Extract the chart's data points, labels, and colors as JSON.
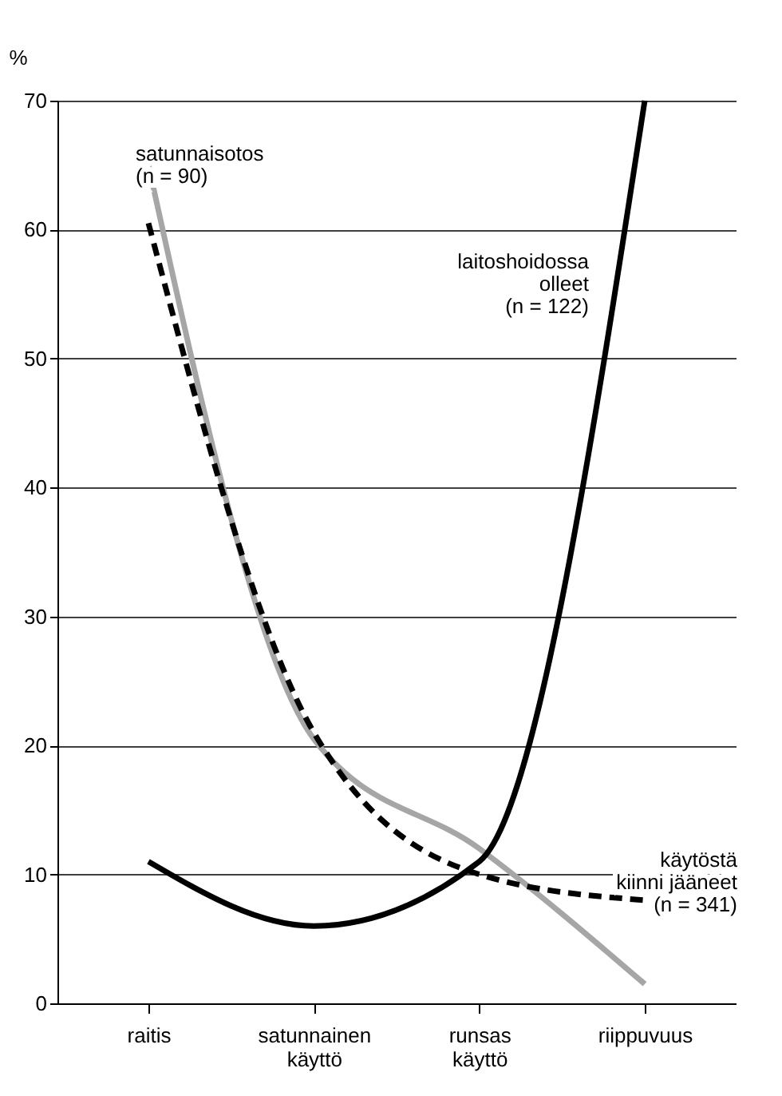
{
  "chart_data": {
    "type": "line",
    "ylabel": "%",
    "categories": [
      "raitis",
      "satunnainen käyttö",
      "runsas käyttö",
      "riippuvuus"
    ],
    "ylim": [
      0,
      70
    ],
    "yticks": [
      0,
      10,
      20,
      30,
      40,
      50,
      60,
      70
    ],
    "grid": "y",
    "series": [
      {
        "name": "satunnaisotos\n(n = 90)",
        "color": "#a6a6a6",
        "values": [
          65,
          20.5,
          12,
          1.5
        ],
        "line_style": "solid"
      },
      {
        "name": "käytöstä\nkiinni jääneet\n(n = 341)",
        "color": "#000000",
        "values": [
          60.5,
          21,
          10,
          8
        ],
        "line_style": "dashed"
      },
      {
        "name": "laitoshoidossa\nolleet\n(n = 122)",
        "color": "#000000",
        "values": [
          11,
          6,
          11,
          70
        ],
        "line_style": "solid"
      }
    ]
  }
}
